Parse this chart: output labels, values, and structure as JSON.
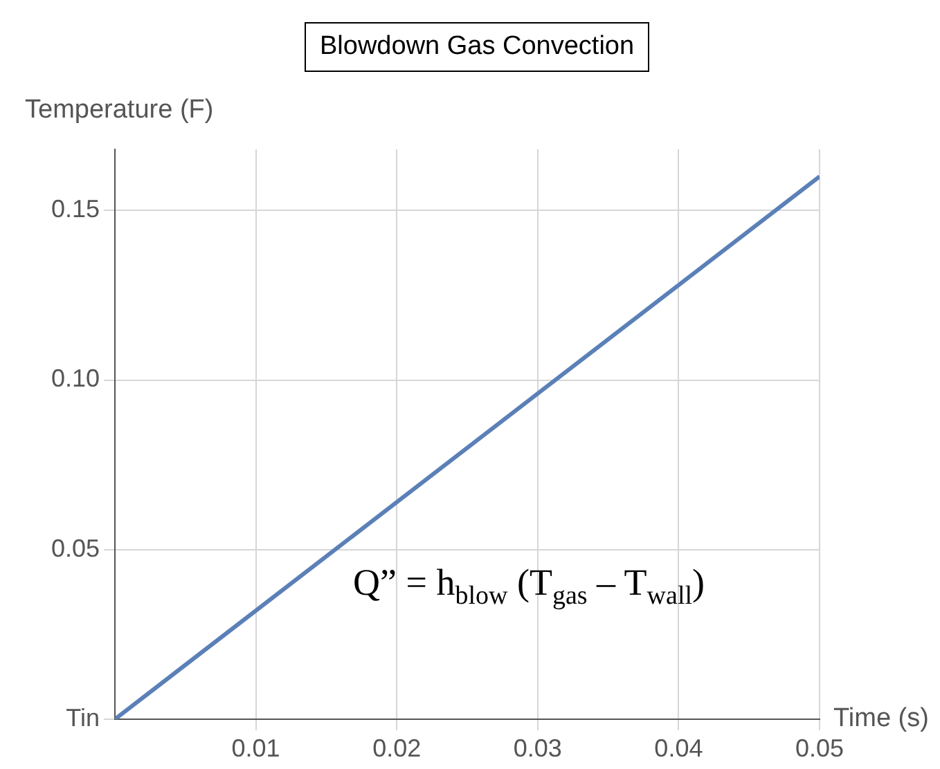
{
  "chart_data": {
    "type": "line",
    "title": "Blowdown Gas Convection",
    "xlabel": "Time (s)",
    "ylabel": "Temperature (F)",
    "x": [
      0,
      0.05
    ],
    "series": [
      {
        "color": "#5b80b8",
        "values": [
          0,
          0.16
        ]
      }
    ],
    "xlim": [
      0,
      0.05
    ],
    "ylim": [
      0,
      0.168
    ],
    "xticks": [
      0.01,
      0.02,
      0.03,
      0.04,
      0.05
    ],
    "yticks": [
      {
        "value": 0,
        "label": "Tin"
      },
      0.05,
      {
        "value": 0.1,
        "label": "0.10"
      },
      0.15
    ],
    "annotations": [
      "Q” = h$_{blow}$  (T$_{gas}$ – T$_{wall}$)"
    ],
    "grid": true,
    "marker": "none",
    "line_style": "solid"
  }
}
